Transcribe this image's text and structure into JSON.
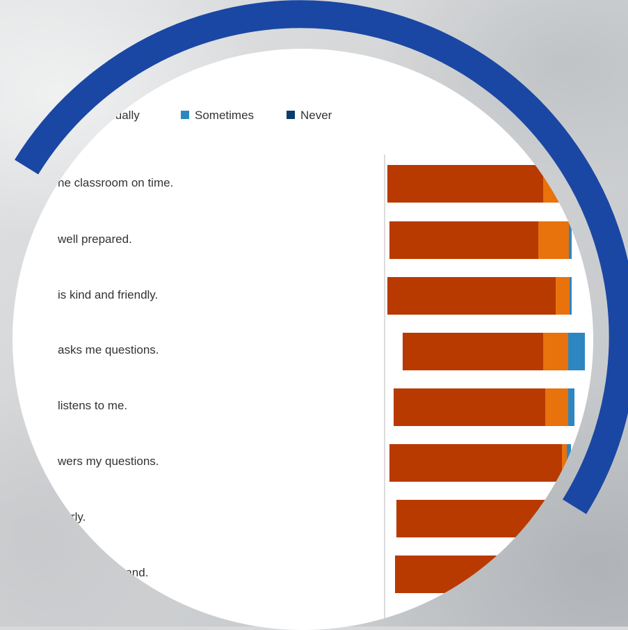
{
  "chart_data": {
    "type": "bar",
    "orientation": "horizontal",
    "stacked": true,
    "legend_position": "top",
    "legend": [
      {
        "name": "Usually",
        "color": "#e8720c"
      },
      {
        "name": "Sometimes",
        "color": "#2e86c1"
      },
      {
        "name": "Never",
        "color": "#0b3c6b"
      }
    ],
    "categories": [
      "he classroom on time.",
      "well prepared.",
      "is kind and friendly.",
      "asks me questions.",
      "listens to me.",
      "wers my questions.",
      "early.",
      "l can understand."
    ],
    "series": [
      {
        "name": "",
        "color": "#b83a00",
        "values": [
          224,
          214,
          242,
          202,
          218,
          248,
          236,
          236
        ]
      },
      {
        "name": "Usually",
        "color": "#e8720c",
        "values": [
          38,
          44,
          20,
          36,
          33,
          7,
          0,
          0
        ]
      },
      {
        "name": "Sometimes",
        "color": "#2e86c1",
        "values": [
          0,
          4,
          3,
          24,
          9,
          6,
          0,
          0
        ]
      },
      {
        "name": "Never",
        "color": "#0b3c6b",
        "values": [
          0,
          0,
          0,
          0,
          0,
          0,
          0,
          0
        ]
      }
    ],
    "grid": false
  },
  "colors": {
    "ring": "#1a47a3",
    "background": "#d7d9db",
    "text": "#333333",
    "axis": "#d0d0d0"
  }
}
